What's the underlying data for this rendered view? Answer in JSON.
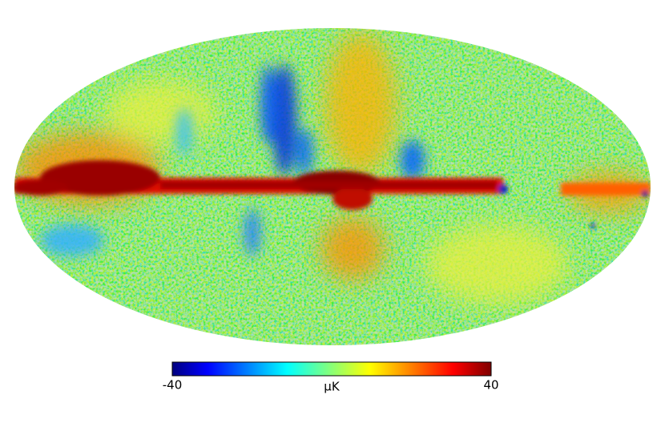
{
  "colorbar": {
    "min": -40,
    "max": 40,
    "label": "μK"
  }
}
